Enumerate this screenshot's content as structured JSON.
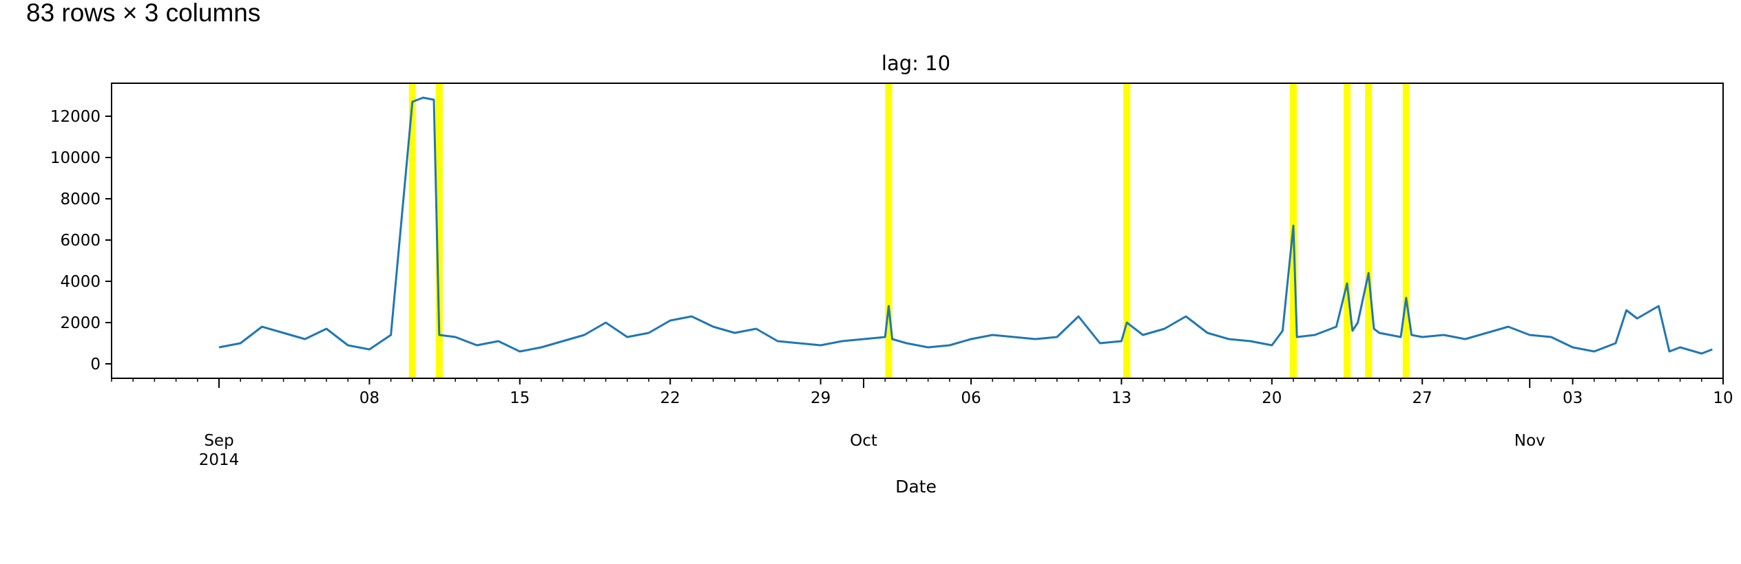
{
  "caption": "83 rows × 3 columns",
  "chart_data": {
    "type": "line",
    "title": "lag: 10",
    "xlabel": "Date",
    "ylabel": "",
    "ylim": [
      -700,
      13600
    ],
    "y_ticks": [
      0,
      2000,
      4000,
      6000,
      8000,
      10000,
      12000
    ],
    "xlim": [
      "2014-08-27",
      "2014-11-10"
    ],
    "x_major_ticks": [
      {
        "date": "2014-09-01",
        "label": "Sep\n2014"
      },
      {
        "date": "2014-10-01",
        "label": "Oct"
      },
      {
        "date": "2014-11-01",
        "label": "Nov"
      }
    ],
    "x_minor_ticks": [
      {
        "date": "2014-09-08",
        "label": "08"
      },
      {
        "date": "2014-09-15",
        "label": "15"
      },
      {
        "date": "2014-09-22",
        "label": "22"
      },
      {
        "date": "2014-09-29",
        "label": "29"
      },
      {
        "date": "2014-10-06",
        "label": "06"
      },
      {
        "date": "2014-10-13",
        "label": "13"
      },
      {
        "date": "2014-10-20",
        "label": "20"
      },
      {
        "date": "2014-10-27",
        "label": "27"
      },
      {
        "date": "2014-11-03",
        "label": "03"
      },
      {
        "date": "2014-11-10",
        "label": "10"
      }
    ],
    "series": [
      {
        "color": "#1f77b4",
        "points": [
          [
            "2014-09-01",
            800
          ],
          [
            "2014-09-02",
            1000
          ],
          [
            "2014-09-03",
            1800
          ],
          [
            "2014-09-04",
            1500
          ],
          [
            "2014-09-05",
            1200
          ],
          [
            "2014-09-06",
            1700
          ],
          [
            "2014-09-07",
            900
          ],
          [
            "2014-09-08",
            700
          ],
          [
            "2014-09-09",
            1400
          ],
          [
            "2014-09-10",
            12700
          ],
          [
            "2014-09-10 12:00",
            12900
          ],
          [
            "2014-09-11",
            12800
          ],
          [
            "2014-09-11 06:00",
            1400
          ],
          [
            "2014-09-12",
            1300
          ],
          [
            "2014-09-13",
            900
          ],
          [
            "2014-09-14",
            1100
          ],
          [
            "2014-09-15",
            600
          ],
          [
            "2014-09-16",
            800
          ],
          [
            "2014-09-17",
            1100
          ],
          [
            "2014-09-18",
            1400
          ],
          [
            "2014-09-19",
            2000
          ],
          [
            "2014-09-20",
            1300
          ],
          [
            "2014-09-21",
            1500
          ],
          [
            "2014-09-22",
            2100
          ],
          [
            "2014-09-23",
            2300
          ],
          [
            "2014-09-24",
            1800
          ],
          [
            "2014-09-25",
            1500
          ],
          [
            "2014-09-26",
            1700
          ],
          [
            "2014-09-27",
            1100
          ],
          [
            "2014-09-28",
            1000
          ],
          [
            "2014-09-29",
            900
          ],
          [
            "2014-09-30",
            1100
          ],
          [
            "2014-10-01",
            1200
          ],
          [
            "2014-10-02",
            1300
          ],
          [
            "2014-10-02 04:00",
            2800
          ],
          [
            "2014-10-02 08:00",
            1200
          ],
          [
            "2014-10-03",
            1000
          ],
          [
            "2014-10-04",
            800
          ],
          [
            "2014-10-05",
            900
          ],
          [
            "2014-10-06",
            1200
          ],
          [
            "2014-10-07",
            1400
          ],
          [
            "2014-10-08",
            1300
          ],
          [
            "2014-10-09",
            1200
          ],
          [
            "2014-10-10",
            1300
          ],
          [
            "2014-10-11",
            2300
          ],
          [
            "2014-10-12",
            1000
          ],
          [
            "2014-10-13",
            1100
          ],
          [
            "2014-10-13 06:00",
            2000
          ],
          [
            "2014-10-14",
            1400
          ],
          [
            "2014-10-15",
            1700
          ],
          [
            "2014-10-16",
            2300
          ],
          [
            "2014-10-17",
            1500
          ],
          [
            "2014-10-18",
            1200
          ],
          [
            "2014-10-19",
            1100
          ],
          [
            "2014-10-20",
            900
          ],
          [
            "2014-10-20 12:00",
            1600
          ],
          [
            "2014-10-21",
            6700
          ],
          [
            "2014-10-21 04:00",
            1300
          ],
          [
            "2014-10-22",
            1400
          ],
          [
            "2014-10-23",
            1800
          ],
          [
            "2014-10-23 12:00",
            3900
          ],
          [
            "2014-10-23 18:00",
            1600
          ],
          [
            "2014-10-24",
            2000
          ],
          [
            "2014-10-24 12:00",
            4400
          ],
          [
            "2014-10-24 18:00",
            1700
          ],
          [
            "2014-10-25",
            1500
          ],
          [
            "2014-10-26",
            1300
          ],
          [
            "2014-10-26 06:00",
            3200
          ],
          [
            "2014-10-26 12:00",
            1400
          ],
          [
            "2014-10-27",
            1300
          ],
          [
            "2014-10-28",
            1400
          ],
          [
            "2014-10-29",
            1200
          ],
          [
            "2014-10-30",
            1500
          ],
          [
            "2014-10-31",
            1800
          ],
          [
            "2014-11-01",
            1400
          ],
          [
            "2014-11-02",
            1300
          ],
          [
            "2014-11-03",
            800
          ],
          [
            "2014-11-04",
            600
          ],
          [
            "2014-11-05",
            1000
          ],
          [
            "2014-11-05 12:00",
            2600
          ],
          [
            "2014-11-06",
            2200
          ],
          [
            "2014-11-07",
            2800
          ],
          [
            "2014-11-07 12:00",
            600
          ],
          [
            "2014-11-08",
            800
          ],
          [
            "2014-11-09",
            500
          ],
          [
            "2014-11-09 12:00",
            700
          ]
        ]
      }
    ],
    "highlights": {
      "color": "#ffff00",
      "dates": [
        "2014-09-10",
        "2014-09-11 06:00",
        "2014-10-02 04:00",
        "2014-10-13 06:00",
        "2014-10-21",
        "2014-10-23 12:00",
        "2014-10-24 12:00",
        "2014-10-26 06:00"
      ]
    },
    "grid": false,
    "legend": "none"
  }
}
